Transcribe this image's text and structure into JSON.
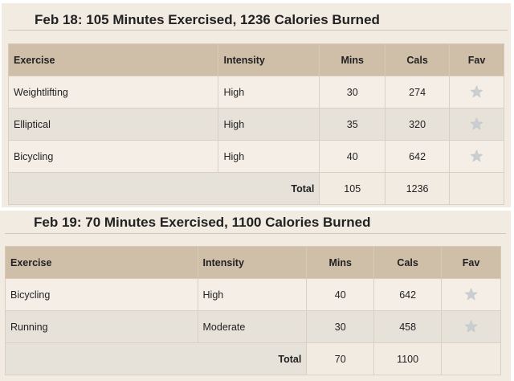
{
  "days": [
    {
      "title": "Feb 18: 105 Minutes Exercised, 1236 Calories Burned",
      "headers": [
        "Exercise",
        "Intensity",
        "Mins",
        "Cals",
        "Fav"
      ],
      "rows": [
        {
          "exercise": "Weightlifting",
          "intensity": "High",
          "mins": "30",
          "cals": "274",
          "fav": "star-icon"
        },
        {
          "exercise": "Elliptical",
          "intensity": "High",
          "mins": "35",
          "cals": "320",
          "fav": "star-icon"
        },
        {
          "exercise": "Bicycling",
          "intensity": "High",
          "mins": "40",
          "cals": "642",
          "fav": "star-icon"
        }
      ],
      "total": {
        "label": "Total",
        "mins": "105",
        "cals": "1236"
      }
    },
    {
      "title": "Feb 19: 70 Minutes Exercised, 1100 Calories Burned",
      "headers": [
        "Exercise",
        "Intensity",
        "Mins",
        "Cals",
        "Fav"
      ],
      "rows": [
        {
          "exercise": "Bicycling",
          "intensity": "High",
          "mins": "40",
          "cals": "642",
          "fav": "star-icon"
        },
        {
          "exercise": "Running",
          "intensity": "Moderate",
          "mins": "30",
          "cals": "458",
          "fav": "star-icon"
        }
      ],
      "total": {
        "label": "Total",
        "mins": "70",
        "cals": "1100"
      }
    }
  ],
  "colors": {
    "header": "#cfbea8",
    "paper": "#f1ebe2",
    "alt_row": "#e6e2da"
  }
}
